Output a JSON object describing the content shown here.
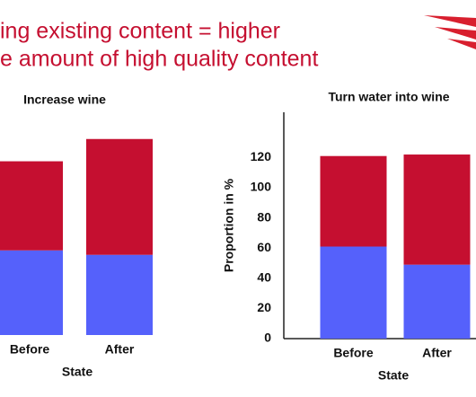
{
  "header": {
    "lines": [
      "ing existing content = higher",
      "e amount of high quality content"
    ]
  },
  "chart_data": [
    {
      "type": "bar",
      "stacked": true,
      "title": "Increase wine",
      "x_label": "State",
      "categories": [
        "Before",
        "After"
      ],
      "series": [
        {
          "color": "#5561fb",
          "values": [
            57,
            54
          ]
        },
        {
          "color": "#c50f30",
          "values": [
            60,
            78
          ]
        }
      ],
      "ylim": [
        0,
        150
      ]
    },
    {
      "type": "bar",
      "stacked": true,
      "title": "Turn water into wine",
      "x_label": "State",
      "y_label": "Proportion in %",
      "categories": [
        "Before",
        "After"
      ],
      "series": [
        {
          "color": "#5561fb",
          "values": [
            61,
            49
          ]
        },
        {
          "color": "#c50f30",
          "values": [
            60,
            73
          ]
        }
      ],
      "ylim": [
        0,
        150
      ],
      "yticks": [
        0,
        20,
        40,
        60,
        80,
        100,
        120
      ]
    }
  ]
}
